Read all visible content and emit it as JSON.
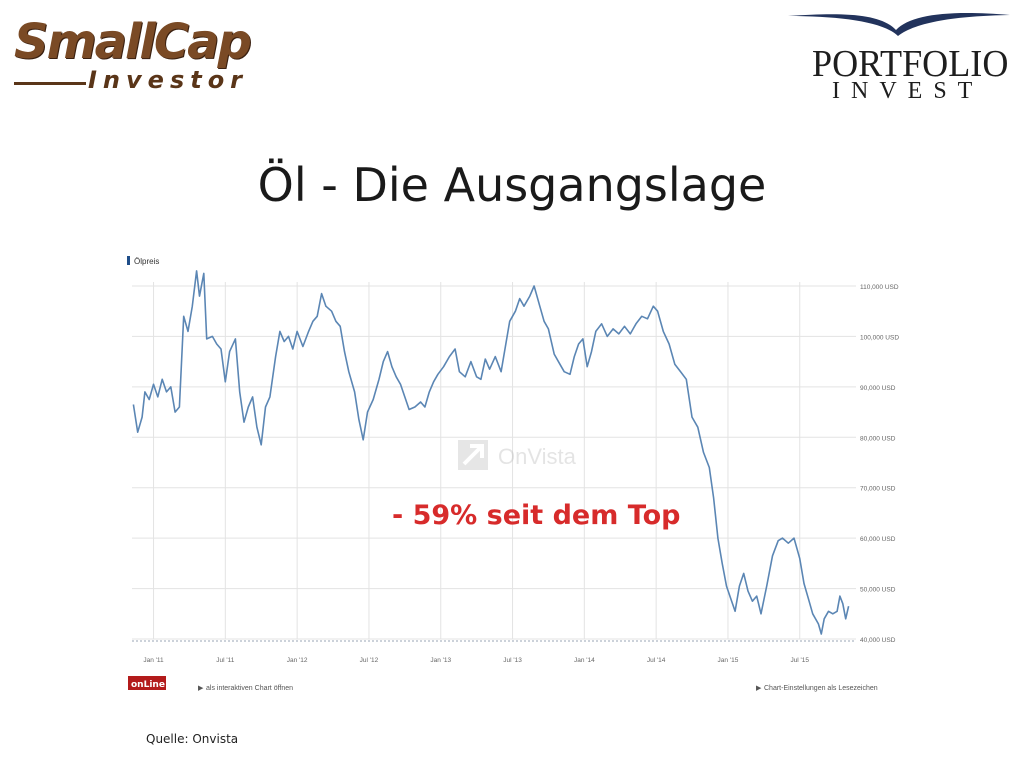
{
  "logos": {
    "left_main": "SmallCap",
    "left_sub": "Investor",
    "right_main": "PORTFOLIO",
    "right_sub": "INVEST"
  },
  "slide_title": "Öl - Die Ausgangslage",
  "annotation": "- 59% seit dem Top",
  "source": "Quelle: Onvista",
  "colors": {
    "line": "#5b86b4",
    "annotation": "#d72b2b",
    "grid": "#e3e3e3"
  },
  "chart_footer": {
    "brand": "onLine",
    "left_link": "als interaktiven Chart öffnen",
    "right_link": "Chart-Einstellungen als Lesezeichen"
  },
  "watermark": "OnVista",
  "chart_data": {
    "type": "line",
    "title": "",
    "legend": "Ölpreis",
    "xlabel": "",
    "ylabel": "",
    "ylim": [
      40,
      115
    ],
    "y_ticks": [
      {
        "value": 110,
        "label": "110,000 USD"
      },
      {
        "value": 100,
        "label": "100,000 USD"
      },
      {
        "value": 90,
        "label": "90,000 USD"
      },
      {
        "value": 80,
        "label": "80,000 USD"
      },
      {
        "value": 70,
        "label": "70,000 USD"
      },
      {
        "value": 60,
        "label": "60,000 USD"
      },
      {
        "value": 50,
        "label": "50,000 USD"
      },
      {
        "value": 40,
        "label": "40,000 USD"
      }
    ],
    "x_ticks": [
      {
        "value": 2011.0,
        "label": "Jan '11"
      },
      {
        "value": 2011.5,
        "label": "Jul '11"
      },
      {
        "value": 2012.0,
        "label": "Jan '12"
      },
      {
        "value": 2012.5,
        "label": "Jul '12"
      },
      {
        "value": 2013.0,
        "label": "Jan '13"
      },
      {
        "value": 2013.5,
        "label": "Jul '13"
      },
      {
        "value": 2014.0,
        "label": "Jan '14"
      },
      {
        "value": 2014.5,
        "label": "Jul '14"
      },
      {
        "value": 2015.0,
        "label": "Jan '15"
      },
      {
        "value": 2015.5,
        "label": "Jul '15"
      }
    ],
    "xlim": [
      2010.85,
      2015.85
    ],
    "grid": true,
    "series": [
      {
        "name": "Ölpreis",
        "points": [
          [
            2010.86,
            86.5
          ],
          [
            2010.89,
            81
          ],
          [
            2010.92,
            84
          ],
          [
            2010.94,
            89
          ],
          [
            2010.97,
            87.5
          ],
          [
            2011.0,
            90.5
          ],
          [
            2011.03,
            88
          ],
          [
            2011.06,
            91.5
          ],
          [
            2011.09,
            89
          ],
          [
            2011.12,
            90
          ],
          [
            2011.15,
            85
          ],
          [
            2011.18,
            86
          ],
          [
            2011.21,
            104
          ],
          [
            2011.24,
            101
          ],
          [
            2011.27,
            106
          ],
          [
            2011.3,
            113
          ],
          [
            2011.32,
            108
          ],
          [
            2011.35,
            112.5
          ],
          [
            2011.37,
            99.5
          ],
          [
            2011.41,
            100
          ],
          [
            2011.44,
            98.5
          ],
          [
            2011.47,
            97.5
          ],
          [
            2011.5,
            91
          ],
          [
            2011.53,
            97
          ],
          [
            2011.57,
            99.5
          ],
          [
            2011.6,
            89
          ],
          [
            2011.63,
            83
          ],
          [
            2011.66,
            86
          ],
          [
            2011.69,
            88
          ],
          [
            2011.72,
            82
          ],
          [
            2011.75,
            78.5
          ],
          [
            2011.78,
            86
          ],
          [
            2011.81,
            88
          ],
          [
            2011.85,
            96
          ],
          [
            2011.88,
            101
          ],
          [
            2011.91,
            99
          ],
          [
            2011.94,
            100
          ],
          [
            2011.97,
            97.5
          ],
          [
            2012.0,
            101
          ],
          [
            2012.04,
            98
          ],
          [
            2012.08,
            101
          ],
          [
            2012.11,
            103
          ],
          [
            2012.14,
            104
          ],
          [
            2012.17,
            108.5
          ],
          [
            2012.2,
            106
          ],
          [
            2012.24,
            105
          ],
          [
            2012.27,
            103
          ],
          [
            2012.3,
            102
          ],
          [
            2012.33,
            97
          ],
          [
            2012.36,
            93
          ],
          [
            2012.4,
            89
          ],
          [
            2012.43,
            83.5
          ],
          [
            2012.46,
            79.5
          ],
          [
            2012.49,
            85
          ],
          [
            2012.53,
            87.5
          ],
          [
            2012.57,
            91.5
          ],
          [
            2012.6,
            95
          ],
          [
            2012.63,
            97
          ],
          [
            2012.66,
            94
          ],
          [
            2012.69,
            92
          ],
          [
            2012.72,
            90.5
          ],
          [
            2012.75,
            88
          ],
          [
            2012.78,
            85.5
          ],
          [
            2012.82,
            86
          ],
          [
            2012.86,
            87
          ],
          [
            2012.89,
            86
          ],
          [
            2012.92,
            89
          ],
          [
            2012.95,
            91
          ],
          [
            2012.98,
            92.5
          ],
          [
            2013.02,
            94
          ],
          [
            2013.06,
            96
          ],
          [
            2013.1,
            97.5
          ],
          [
            2013.13,
            93
          ],
          [
            2013.17,
            92
          ],
          [
            2013.21,
            95
          ],
          [
            2013.25,
            92
          ],
          [
            2013.28,
            91.5
          ],
          [
            2013.31,
            95.5
          ],
          [
            2013.34,
            93.5
          ],
          [
            2013.38,
            96
          ],
          [
            2013.42,
            93
          ],
          [
            2013.45,
            98
          ],
          [
            2013.48,
            103
          ],
          [
            2013.52,
            105
          ],
          [
            2013.55,
            107.5
          ],
          [
            2013.58,
            106
          ],
          [
            2013.62,
            108
          ],
          [
            2013.65,
            110
          ],
          [
            2013.69,
            106
          ],
          [
            2013.72,
            103
          ],
          [
            2013.75,
            101.5
          ],
          [
            2013.79,
            96.5
          ],
          [
            2013.83,
            94.5
          ],
          [
            2013.86,
            93
          ],
          [
            2013.9,
            92.5
          ],
          [
            2013.93,
            96
          ],
          [
            2013.96,
            98.5
          ],
          [
            2013.99,
            99.5
          ],
          [
            2014.02,
            94
          ],
          [
            2014.05,
            97
          ],
          [
            2014.08,
            101
          ],
          [
            2014.12,
            102.5
          ],
          [
            2014.16,
            100
          ],
          [
            2014.2,
            101.5
          ],
          [
            2014.24,
            100.5
          ],
          [
            2014.28,
            102
          ],
          [
            2014.32,
            100.5
          ],
          [
            2014.36,
            102.5
          ],
          [
            2014.4,
            104
          ],
          [
            2014.44,
            103.5
          ],
          [
            2014.48,
            106
          ],
          [
            2014.51,
            105
          ],
          [
            2014.55,
            101
          ],
          [
            2014.59,
            98.5
          ],
          [
            2014.63,
            94.5
          ],
          [
            2014.67,
            93
          ],
          [
            2014.71,
            91.5
          ],
          [
            2014.75,
            84
          ],
          [
            2014.79,
            82
          ],
          [
            2014.83,
            77
          ],
          [
            2014.87,
            74
          ],
          [
            2014.9,
            68
          ],
          [
            2014.93,
            60
          ],
          [
            2014.96,
            55
          ],
          [
            2014.99,
            50.5
          ],
          [
            2015.02,
            48
          ],
          [
            2015.05,
            45.5
          ],
          [
            2015.08,
            50.5
          ],
          [
            2015.11,
            53
          ],
          [
            2015.14,
            49.5
          ],
          [
            2015.17,
            47.5
          ],
          [
            2015.2,
            48.5
          ],
          [
            2015.23,
            45
          ],
          [
            2015.27,
            50.5
          ],
          [
            2015.31,
            56.5
          ],
          [
            2015.35,
            59.5
          ],
          [
            2015.38,
            60
          ],
          [
            2015.42,
            59
          ],
          [
            2015.46,
            60
          ],
          [
            2015.5,
            56
          ],
          [
            2015.53,
            51
          ],
          [
            2015.56,
            48
          ],
          [
            2015.59,
            45
          ],
          [
            2015.63,
            43
          ],
          [
            2015.65,
            41
          ],
          [
            2015.67,
            44
          ],
          [
            2015.7,
            45.5
          ],
          [
            2015.73,
            45
          ],
          [
            2015.76,
            45.5
          ],
          [
            2015.78,
            48.5
          ],
          [
            2015.8,
            47
          ],
          [
            2015.82,
            44
          ],
          [
            2015.84,
            46.5
          ]
        ]
      }
    ]
  }
}
